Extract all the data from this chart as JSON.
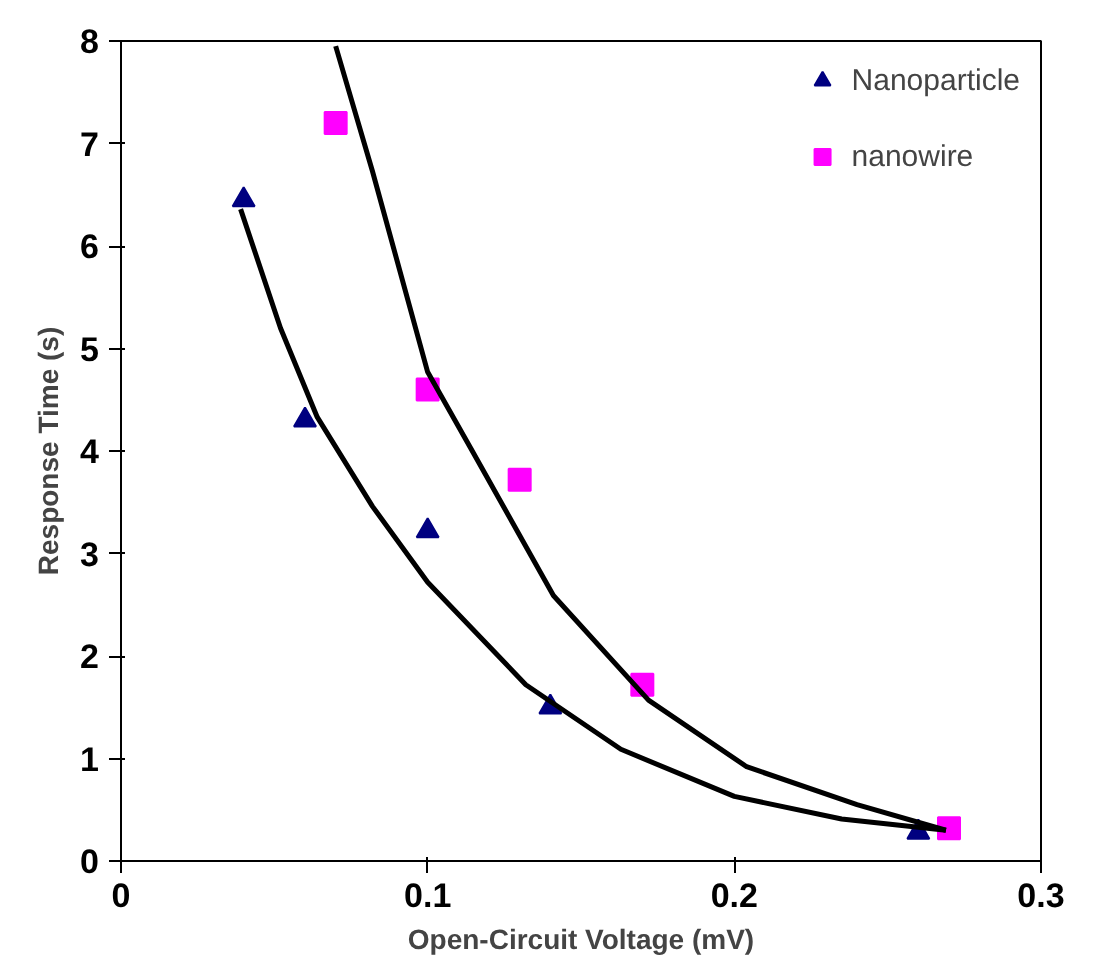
{
  "chart_data": {
    "type": "scatter",
    "xlabel": "Open-Circuit Voltage (mV)",
    "ylabel": "Response Time (s)",
    "xlim": [
      0,
      0.3
    ],
    "ylim": [
      0,
      8
    ],
    "xticks": [
      0,
      0.1,
      0.2,
      0.3
    ],
    "yticks": [
      0,
      1,
      2,
      3,
      4,
      5,
      6,
      7,
      8
    ],
    "grid": false,
    "legend": "top right",
    "series": [
      {
        "name": "Nanoparticle",
        "color": "#000080",
        "marker": "triangle",
        "x": [
          0.04,
          0.06,
          0.1,
          0.14,
          0.26
        ],
        "values": [
          6.45,
          4.3,
          3.22,
          1.5,
          0.28
        ]
      },
      {
        "name": "nanowire",
        "color": "#ff00ff",
        "marker": "square",
        "x": [
          0.07,
          0.1,
          0.13,
          0.17,
          0.27
        ],
        "values": [
          7.2,
          4.6,
          3.72,
          1.72,
          0.32
        ]
      },
      {
        "type": "line",
        "color": "#000000",
        "marker": "none",
        "x": [
          0.039,
          0.052,
          0.064,
          0.082,
          0.1,
          0.132,
          0.163,
          0.2,
          0.235,
          0.269
        ],
        "values": [
          6.36,
          5.2,
          4.33,
          3.46,
          2.72,
          1.72,
          1.09,
          0.63,
          0.41,
          0.3
        ]
      },
      {
        "type": "line",
        "color": "#000000",
        "marker": "none",
        "x": [
          0.07,
          0.082,
          0.1,
          0.114,
          0.141,
          0.172,
          0.204,
          0.24,
          0.269
        ],
        "values": [
          7.95,
          6.73,
          4.77,
          4.03,
          2.59,
          1.57,
          0.92,
          0.55,
          0.3
        ]
      }
    ]
  }
}
